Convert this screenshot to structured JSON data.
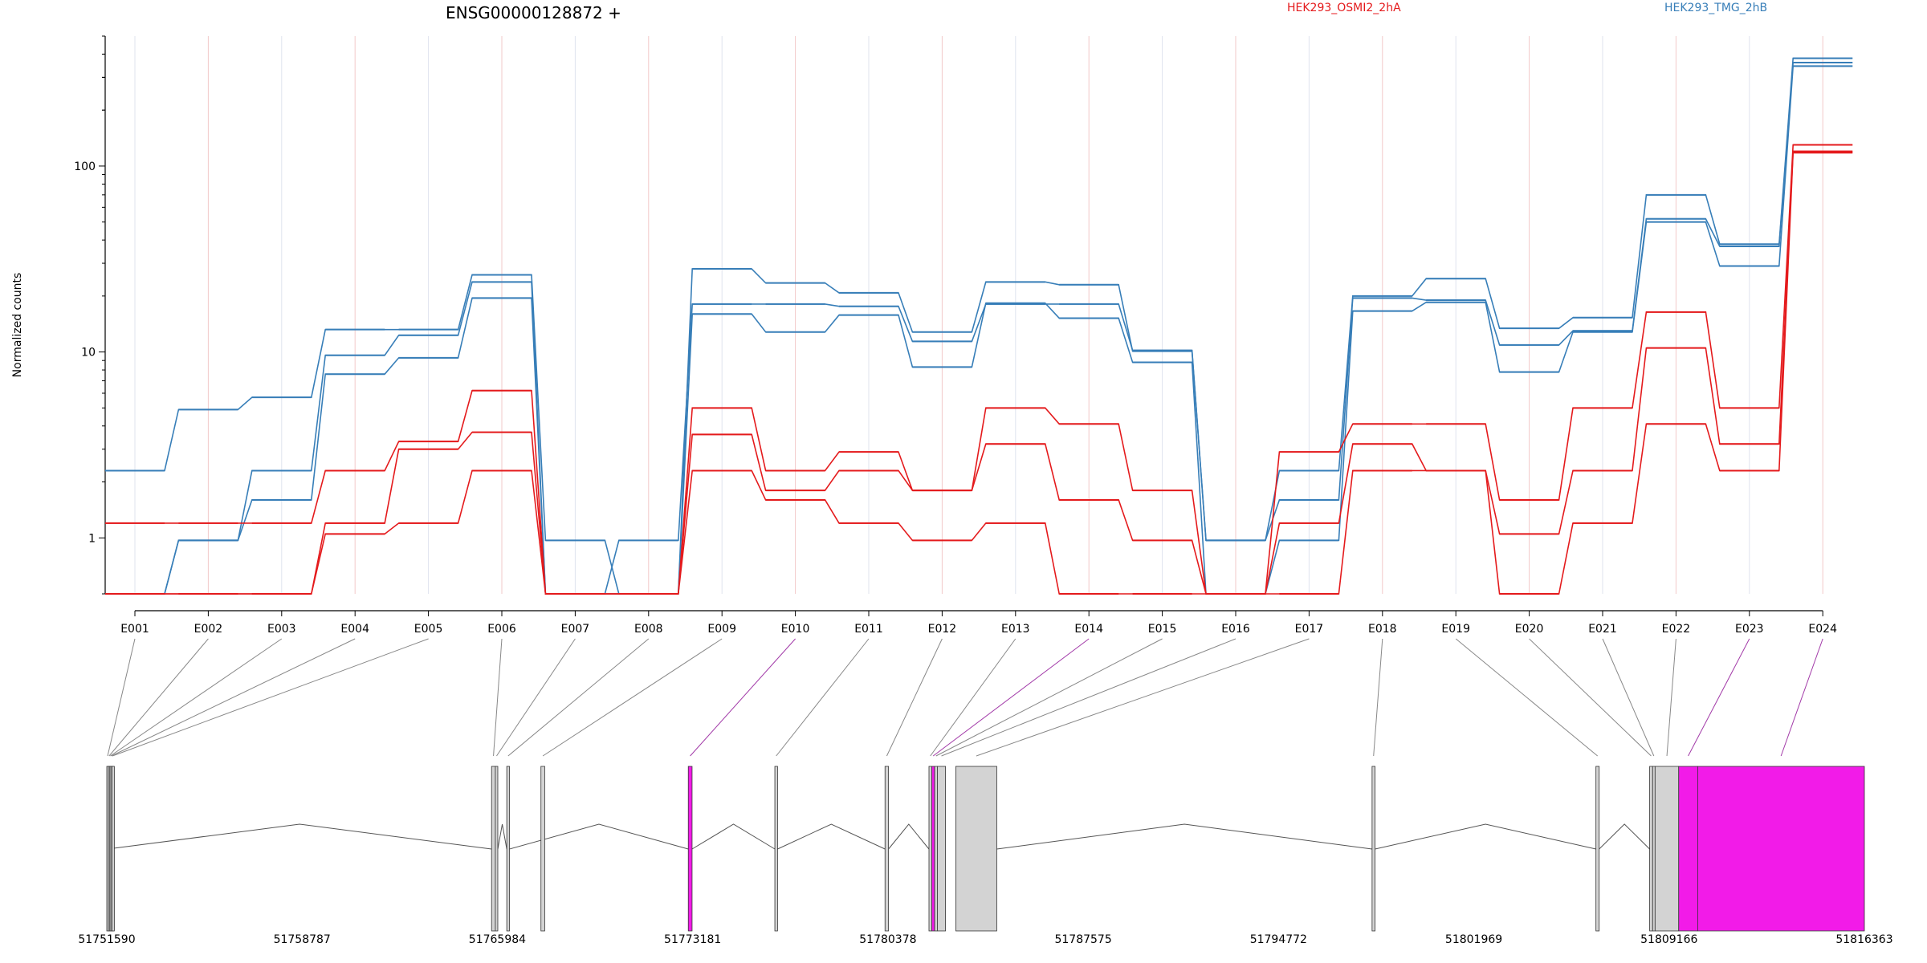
{
  "chart_data": {
    "type": "line",
    "title": "ENSG00000128872 +",
    "ylabel": "Normalized counts",
    "yscale": "log",
    "ylim": [
      0.5,
      500
    ],
    "yticks": [
      "1",
      "10",
      "100"
    ],
    "categories": [
      "E001",
      "E002",
      "E003",
      "E004",
      "E005",
      "E006",
      "E007",
      "E008",
      "E009",
      "E010",
      "E011",
      "E012",
      "E013",
      "E014",
      "E015",
      "E016",
      "E017",
      "E018",
      "E019",
      "E020",
      "E021",
      "E022",
      "E023",
      "E024"
    ],
    "legend": [
      {
        "label": "HEK293_OSMI2_2hA",
        "color": "#e41a1c"
      },
      {
        "label": "HEK293_TMG_2hB",
        "color": "#377eb8"
      }
    ],
    "series": [
      {
        "group": "HEK293_TMG_2hB",
        "color": "#377eb8",
        "values": [
          2.3,
          4.9,
          5.7,
          13.2,
          13.2,
          26.0,
          0.97,
          0.5,
          28.0,
          23.5,
          20.8,
          12.8,
          23.8,
          23.0,
          10.1,
          0.97,
          2.3,
          20.0,
          24.8,
          13.4,
          15.3,
          70.0,
          38.0,
          380
        ]
      },
      {
        "group": "HEK293_TMG_2hB",
        "color": "#377eb8",
        "values": [
          0.5,
          0.97,
          2.3,
          9.6,
          12.3,
          23.8,
          0.5,
          0.97,
          18.1,
          18.1,
          17.6,
          11.4,
          18.1,
          18.1,
          10.2,
          0.97,
          1.6,
          19.5,
          19.0,
          10.9,
          13.0,
          52.0,
          37.0,
          360
        ]
      },
      {
        "group": "HEK293_TMG_2hB",
        "color": "#377eb8",
        "values": [
          0.5,
          0.97,
          1.6,
          7.6,
          9.3,
          19.5,
          0.5,
          0.5,
          16.0,
          12.8,
          15.8,
          8.3,
          18.3,
          15.2,
          8.8,
          0.5,
          0.97,
          16.6,
          18.5,
          7.8,
          12.8,
          50.0,
          29.0,
          345
        ]
      },
      {
        "group": "HEK293_OSMI2_2hA",
        "color": "#e41a1c",
        "values": [
          1.2,
          1.2,
          1.2,
          2.3,
          3.3,
          6.2,
          0.5,
          0.5,
          5.0,
          2.3,
          2.9,
          1.8,
          5.0,
          4.1,
          1.8,
          0.5,
          2.9,
          4.1,
          4.1,
          1.6,
          5.0,
          16.4,
          5.0,
          130
        ]
      },
      {
        "group": "HEK293_OSMI2_2hA",
        "color": "#e41a1c",
        "values": [
          0.5,
          0.5,
          0.5,
          1.2,
          3.0,
          3.7,
          0.5,
          0.5,
          3.6,
          1.8,
          2.3,
          1.8,
          3.2,
          1.6,
          0.97,
          0.5,
          1.2,
          3.2,
          2.3,
          1.05,
          2.3,
          10.5,
          3.2,
          120
        ]
      },
      {
        "group": "HEK293_OSMI2_2hA",
        "color": "#e41a1c",
        "values": [
          0.5,
          0.5,
          0.5,
          1.05,
          1.2,
          2.3,
          0.5,
          0.5,
          2.3,
          1.6,
          1.2,
          0.97,
          1.2,
          0.5,
          0.5,
          0.5,
          0.5,
          2.3,
          2.3,
          0.5,
          1.2,
          4.1,
          2.3,
          118
        ]
      }
    ],
    "gene_model": {
      "axis_ticks": [
        "51751590",
        "51758787",
        "51765984",
        "51773181",
        "51780378",
        "51787575",
        "51794772",
        "51801969",
        "51809166",
        "51816363"
      ],
      "range": [
        51751590,
        51816363
      ],
      "exons": [
        {
          "id": "E001",
          "start": 51751590,
          "end": 51751650,
          "highlight": false
        },
        {
          "id": "E002",
          "start": 51751650,
          "end": 51751700,
          "highlight": false
        },
        {
          "id": "E003",
          "start": 51751700,
          "end": 51751740,
          "highlight": false
        },
        {
          "id": "E004",
          "start": 51751740,
          "end": 51751780,
          "highlight": false
        },
        {
          "id": "E005",
          "start": 51751780,
          "end": 51751820,
          "highlight": false
        },
        {
          "id": "E006",
          "start": 51765770,
          "end": 51765910,
          "highlight": false
        },
        {
          "id": "E007",
          "start": 51765910,
          "end": 51766000,
          "highlight": false
        },
        {
          "id": "E008",
          "start": 51766330,
          "end": 51766430,
          "highlight": false
        },
        {
          "id": "E009",
          "start": 51767590,
          "end": 51767730,
          "highlight": false
        },
        {
          "id": "E010",
          "start": 51773020,
          "end": 51773160,
          "highlight": true
        },
        {
          "id": "E011",
          "start": 51776210,
          "end": 51776310,
          "highlight": false
        },
        {
          "id": "E012",
          "start": 51780270,
          "end": 51780400,
          "highlight": false
        },
        {
          "id": "E013",
          "start": 51781890,
          "end": 51781990,
          "highlight": false
        },
        {
          "id": "E014",
          "start": 51781990,
          "end": 51782100,
          "highlight": true
        },
        {
          "id": "E015",
          "start": 51782100,
          "end": 51782200,
          "highlight": false
        },
        {
          "id": "E016",
          "start": 51782200,
          "end": 51782500,
          "highlight": false
        },
        {
          "id": "E017",
          "start": 51782880,
          "end": 51784390,
          "highlight": false
        },
        {
          "id": "E018",
          "start": 51798220,
          "end": 51798330,
          "highlight": false
        },
        {
          "id": "E019",
          "start": 51806470,
          "end": 51806590,
          "highlight": false
        },
        {
          "id": "E020",
          "start": 51808450,
          "end": 51808560,
          "highlight": false
        },
        {
          "id": "E021",
          "start": 51808560,
          "end": 51808650,
          "highlight": false
        },
        {
          "id": "E022",
          "start": 51808650,
          "end": 51809520,
          "highlight": false
        },
        {
          "id": "E023",
          "start": 51809520,
          "end": 51810220,
          "highlight": true
        },
        {
          "id": "E024",
          "start": 51810220,
          "end": 51816363,
          "highlight": true
        }
      ],
      "introns": [
        [
          51751620,
          51765770
        ],
        [
          51766000,
          51766330
        ],
        [
          51766430,
          51773020
        ],
        [
          51773160,
          51776210
        ],
        [
          51776310,
          51780270
        ],
        [
          51780400,
          51781890
        ],
        [
          51784390,
          51798220
        ],
        [
          51798330,
          51806470
        ],
        [
          51806590,
          51808450
        ]
      ]
    }
  },
  "colors": {
    "highlight": "#f21be8",
    "exon_fill": "#d3d3d3",
    "grid_group1": "#f2c9c9",
    "grid_group2": "#dfe3ee"
  }
}
